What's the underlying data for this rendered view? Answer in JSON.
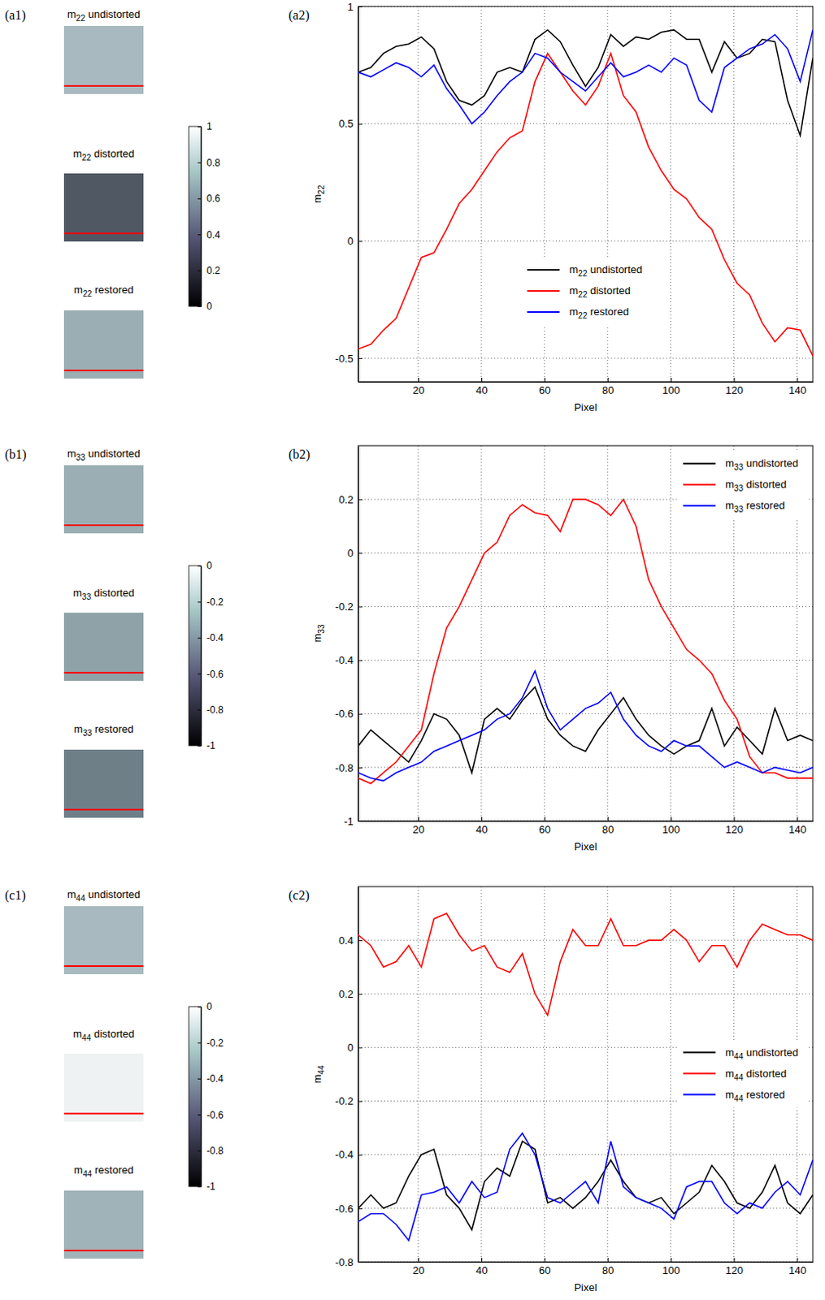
{
  "chart_data": [
    {
      "type": "line",
      "label": "(a2)",
      "thumb_label": "(a1)",
      "thumbnails": [
        "m22 undistorted",
        "m22 distorted",
        "m22 restored"
      ],
      "colorbar": {
        "range": [
          0,
          1
        ],
        "ticks": [
          0,
          0.2,
          0.4,
          0.6,
          0.8,
          1
        ]
      },
      "xlabel": "Pixel",
      "ylabel": "m22",
      "grid": true,
      "legend": "lower center",
      "xlim": [
        1,
        145
      ],
      "xticks": [
        20,
        40,
        60,
        80,
        100,
        120,
        140
      ],
      "ylim": [
        -0.6,
        1
      ],
      "yticks": [
        -0.5,
        0,
        0.5,
        1
      ],
      "x": [
        1,
        5,
        9,
        13,
        17,
        21,
        25,
        29,
        33,
        37,
        41,
        45,
        49,
        53,
        57,
        61,
        65,
        69,
        73,
        77,
        81,
        85,
        89,
        93,
        97,
        101,
        105,
        109,
        113,
        117,
        121,
        125,
        129,
        133,
        137,
        141,
        145
      ],
      "series": [
        {
          "name": "m22 undistorted",
          "color": "#000000",
          "values": [
            0.72,
            0.74,
            0.8,
            0.83,
            0.84,
            0.87,
            0.82,
            0.68,
            0.6,
            0.58,
            0.62,
            0.72,
            0.74,
            0.72,
            0.86,
            0.9,
            0.85,
            0.75,
            0.66,
            0.74,
            0.88,
            0.83,
            0.87,
            0.86,
            0.89,
            0.9,
            0.86,
            0.86,
            0.72,
            0.85,
            0.78,
            0.8,
            0.86,
            0.85,
            0.6,
            0.45,
            0.78
          ]
        },
        {
          "name": "m22 distorted",
          "color": "#ff0000",
          "values": [
            -0.46,
            -0.44,
            -0.38,
            -0.33,
            -0.2,
            -0.07,
            -0.05,
            0.05,
            0.16,
            0.22,
            0.3,
            0.38,
            0.44,
            0.47,
            0.68,
            0.8,
            0.72,
            0.64,
            0.58,
            0.66,
            0.8,
            0.62,
            0.55,
            0.4,
            0.3,
            0.22,
            0.18,
            0.1,
            0.05,
            -0.08,
            -0.18,
            -0.23,
            -0.35,
            -0.43,
            -0.37,
            -0.38,
            -0.49
          ]
        },
        {
          "name": "m22 restored",
          "color": "#0000ff",
          "values": [
            0.72,
            0.7,
            0.73,
            0.76,
            0.74,
            0.7,
            0.75,
            0.65,
            0.58,
            0.5,
            0.55,
            0.62,
            0.68,
            0.72,
            0.8,
            0.78,
            0.72,
            0.68,
            0.64,
            0.7,
            0.76,
            0.7,
            0.72,
            0.75,
            0.72,
            0.78,
            0.75,
            0.6,
            0.55,
            0.74,
            0.78,
            0.82,
            0.84,
            0.88,
            0.82,
            0.68,
            0.9
          ]
        }
      ]
    },
    {
      "type": "line",
      "label": "(b2)",
      "thumb_label": "(b1)",
      "thumbnails": [
        "m33 undistorted",
        "m33 distorted",
        "m33 restored"
      ],
      "colorbar": {
        "range": [
          -1,
          0
        ],
        "ticks": [
          -1,
          -0.8,
          -0.6,
          -0.4,
          -0.2,
          0
        ]
      },
      "xlabel": "Pixel",
      "ylabel": "m33",
      "grid": true,
      "legend": "upper right",
      "xlim": [
        1,
        145
      ],
      "xticks": [
        20,
        40,
        60,
        80,
        100,
        120,
        140
      ],
      "ylim": [
        -1,
        0.4
      ],
      "yticks": [
        -1,
        -0.8,
        -0.6,
        -0.4,
        -0.2,
        0,
        0.2
      ],
      "x": [
        1,
        5,
        9,
        13,
        17,
        21,
        25,
        29,
        33,
        37,
        41,
        45,
        49,
        53,
        57,
        61,
        65,
        69,
        73,
        77,
        81,
        85,
        89,
        93,
        97,
        101,
        105,
        109,
        113,
        117,
        121,
        125,
        129,
        133,
        137,
        141,
        145
      ],
      "series": [
        {
          "name": "m33 undistorted",
          "color": "#000000",
          "values": [
            -0.72,
            -0.66,
            -0.7,
            -0.74,
            -0.78,
            -0.7,
            -0.6,
            -0.62,
            -0.68,
            -0.82,
            -0.62,
            -0.58,
            -0.62,
            -0.55,
            -0.5,
            -0.62,
            -0.68,
            -0.72,
            -0.74,
            -0.66,
            -0.6,
            -0.54,
            -0.62,
            -0.68,
            -0.72,
            -0.75,
            -0.72,
            -0.7,
            -0.58,
            -0.72,
            -0.65,
            -0.7,
            -0.75,
            -0.58,
            -0.7,
            -0.68,
            -0.7
          ]
        },
        {
          "name": "m33 distorted",
          "color": "#ff0000",
          "values": [
            -0.84,
            -0.86,
            -0.82,
            -0.78,
            -0.72,
            -0.66,
            -0.45,
            -0.28,
            -0.2,
            -0.1,
            0,
            0.04,
            0.14,
            0.18,
            0.15,
            0.14,
            0.08,
            0.2,
            0.2,
            0.18,
            0.14,
            0.2,
            0.1,
            -0.1,
            -0.2,
            -0.28,
            -0.36,
            -0.4,
            -0.45,
            -0.55,
            -0.62,
            -0.76,
            -0.82,
            -0.82,
            -0.84,
            -0.84,
            -0.84
          ]
        },
        {
          "name": "m33 restored",
          "color": "#0000ff",
          "values": [
            -0.82,
            -0.84,
            -0.85,
            -0.82,
            -0.8,
            -0.78,
            -0.74,
            -0.72,
            -0.7,
            -0.68,
            -0.66,
            -0.62,
            -0.6,
            -0.54,
            -0.44,
            -0.58,
            -0.66,
            -0.62,
            -0.58,
            -0.56,
            -0.52,
            -0.62,
            -0.68,
            -0.72,
            -0.74,
            -0.7,
            -0.72,
            -0.72,
            -0.76,
            -0.8,
            -0.78,
            -0.8,
            -0.82,
            -0.8,
            -0.81,
            -0.82,
            -0.8
          ]
        }
      ]
    },
    {
      "type": "line",
      "label": "(c2)",
      "thumb_label": "(c1)",
      "thumbnails": [
        "m44 undistorted",
        "m44 distorted",
        "m44 restored"
      ],
      "colorbar": {
        "range": [
          -1,
          0
        ],
        "ticks": [
          -1,
          -0.8,
          -0.6,
          -0.4,
          -0.2,
          0
        ]
      },
      "xlabel": "Pixel",
      "ylabel": "m44",
      "grid": true,
      "legend": "center right",
      "xlim": [
        1,
        145
      ],
      "xticks": [
        20,
        40,
        60,
        80,
        100,
        120,
        140
      ],
      "ylim": [
        -0.8,
        0.6
      ],
      "yticks": [
        -0.8,
        -0.6,
        -0.4,
        -0.2,
        0,
        0.2,
        0.4
      ],
      "x": [
        1,
        5,
        9,
        13,
        17,
        21,
        25,
        29,
        33,
        37,
        41,
        45,
        49,
        53,
        57,
        61,
        65,
        69,
        73,
        77,
        81,
        85,
        89,
        93,
        97,
        101,
        105,
        109,
        113,
        117,
        121,
        125,
        129,
        133,
        137,
        141,
        145
      ],
      "series": [
        {
          "name": "m44 undistorted",
          "color": "#000000",
          "values": [
            -0.6,
            -0.55,
            -0.6,
            -0.58,
            -0.48,
            -0.4,
            -0.38,
            -0.55,
            -0.6,
            -0.68,
            -0.5,
            -0.45,
            -0.48,
            -0.35,
            -0.38,
            -0.58,
            -0.56,
            -0.6,
            -0.56,
            -0.5,
            -0.42,
            -0.5,
            -0.56,
            -0.58,
            -0.56,
            -0.62,
            -0.58,
            -0.54,
            -0.44,
            -0.5,
            -0.58,
            -0.6,
            -0.54,
            -0.44,
            -0.58,
            -0.62,
            -0.55
          ]
        },
        {
          "name": "m44 distorted",
          "color": "#ff0000",
          "values": [
            0.42,
            0.38,
            0.3,
            0.32,
            0.38,
            0.3,
            0.48,
            0.5,
            0.42,
            0.36,
            0.38,
            0.3,
            0.28,
            0.35,
            0.2,
            0.12,
            0.32,
            0.44,
            0.38,
            0.38,
            0.48,
            0.38,
            0.38,
            0.4,
            0.4,
            0.44,
            0.4,
            0.32,
            0.38,
            0.38,
            0.3,
            0.4,
            0.46,
            0.44,
            0.42,
            0.42,
            0.4
          ]
        },
        {
          "name": "m44 restored",
          "color": "#0000ff",
          "values": [
            -0.65,
            -0.62,
            -0.62,
            -0.66,
            -0.72,
            -0.55,
            -0.54,
            -0.52,
            -0.58,
            -0.5,
            -0.56,
            -0.54,
            -0.38,
            -0.32,
            -0.4,
            -0.56,
            -0.58,
            -0.54,
            -0.5,
            -0.58,
            -0.35,
            -0.52,
            -0.56,
            -0.58,
            -0.6,
            -0.64,
            -0.52,
            -0.5,
            -0.5,
            -0.58,
            -0.62,
            -0.58,
            -0.6,
            -0.54,
            -0.5,
            -0.55,
            -0.42
          ]
        }
      ]
    }
  ]
}
